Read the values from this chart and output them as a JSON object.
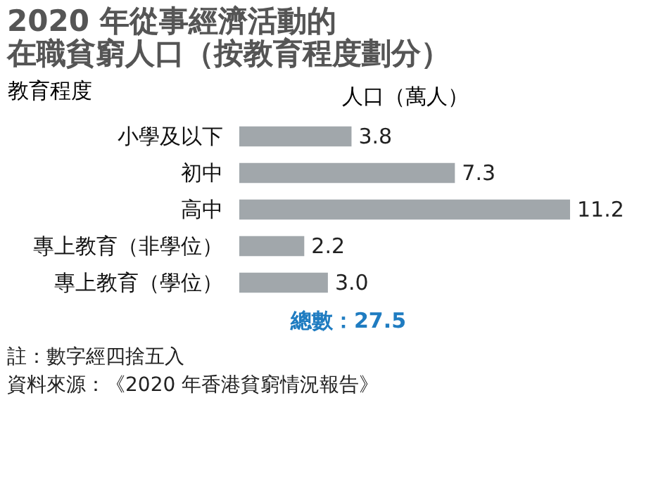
{
  "chart_data": {
    "type": "bar",
    "orientation": "horizontal",
    "title": [
      "2020 年從事經濟活動的",
      "在職貧窮人口（按教育程度劃分）"
    ],
    "ylabel": "教育程度",
    "xlabel": "人口（萬人）",
    "categories": [
      "小學及以下",
      "初中",
      "高中",
      "專上教育（非學位）",
      "專上教育（學位）"
    ],
    "values": [
      3.8,
      7.3,
      11.2,
      2.2,
      3.0
    ],
    "value_labels": [
      "3.8",
      "7.3",
      "11.2",
      "2.2",
      "3.0"
    ],
    "color": "#a1a7ab",
    "grid": false,
    "annotations": [
      "總數：27.5",
      "註：數字經四捨五入",
      "資料來源：《2020 年香港貧窮情況報告》"
    ]
  }
}
